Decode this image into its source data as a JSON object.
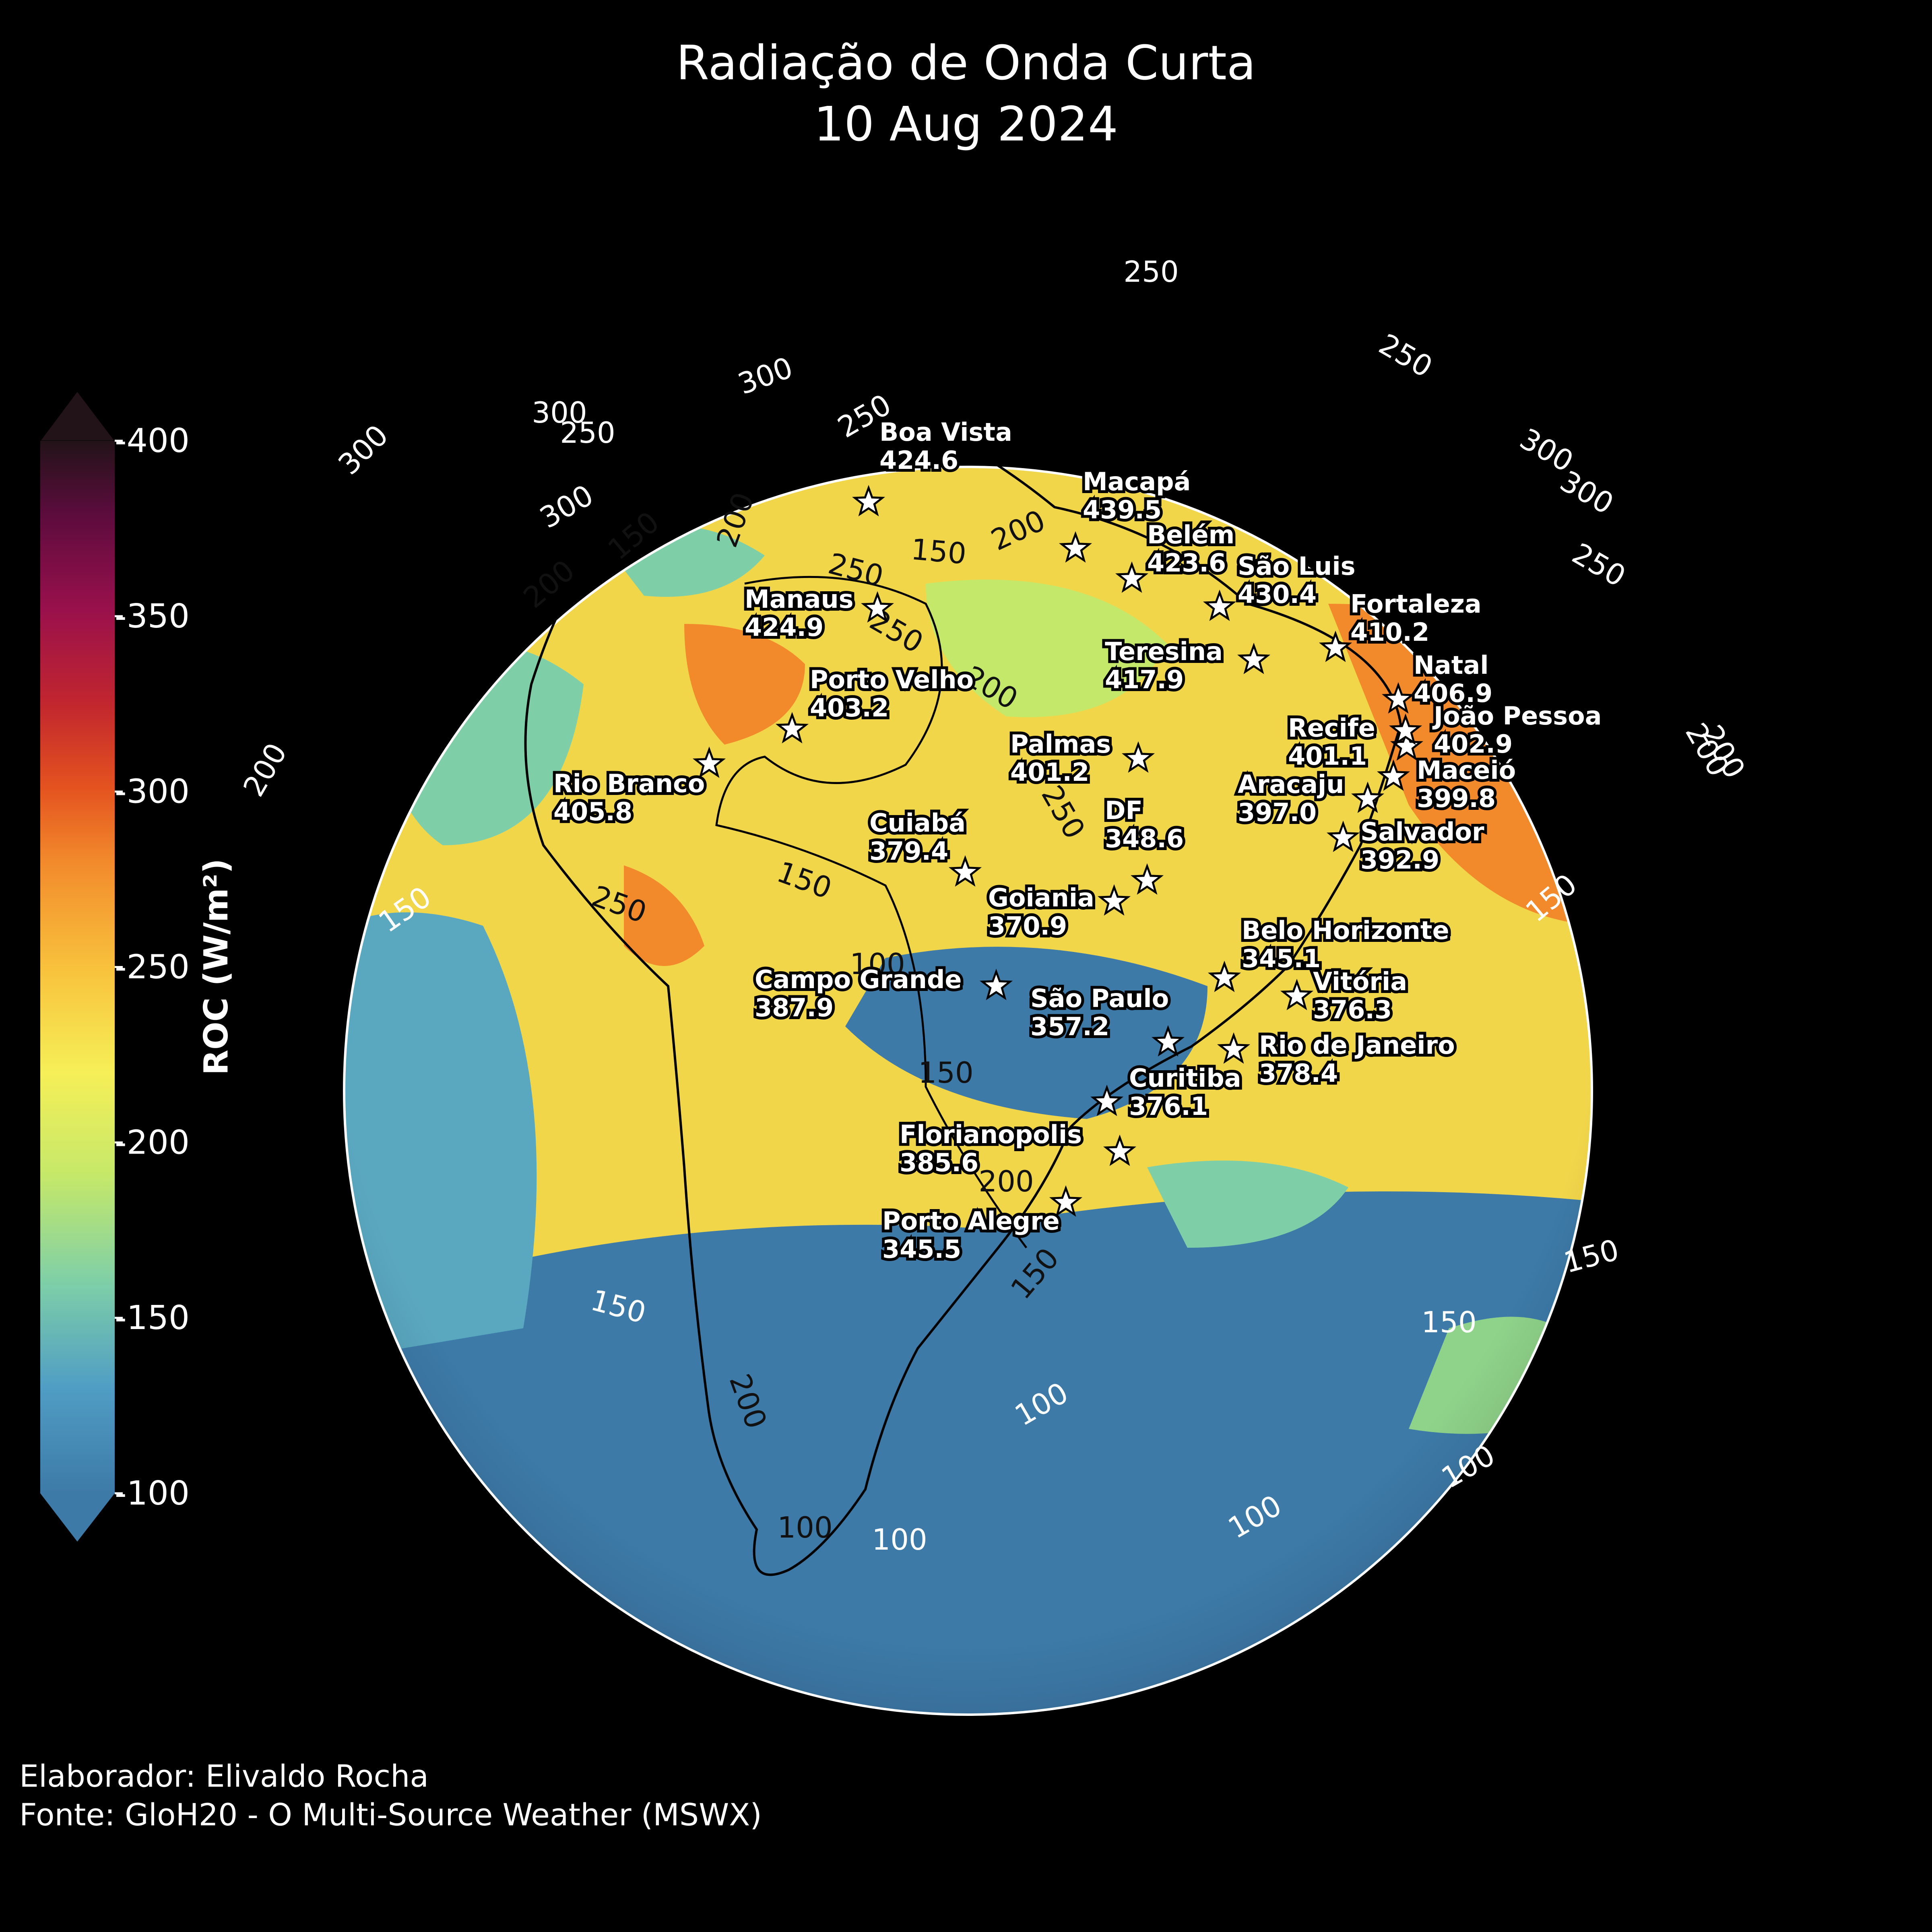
{
  "title": {
    "line1": "Radiação de Onda Curta",
    "line2": "10 Aug 2024"
  },
  "footer": {
    "author": "Elaborador: Elivaldo Rocha",
    "source": "Fonte: GloH20 - O Multi-Source Weather (MSWX)"
  },
  "colorbar": {
    "label": "ROC (W/m²)",
    "ticks": [
      "-100",
      "-150",
      "-200",
      "-250",
      "-300",
      "-350",
      "-400"
    ],
    "range": [
      100,
      400
    ],
    "extend": "both",
    "colors": [
      "#3d7aa8",
      "#4f9dc4",
      "#7ecfa8",
      "#c4e86a",
      "#f6ef57",
      "#f8c13c",
      "#f28a2c",
      "#e4531f",
      "#c2262e",
      "#99104c",
      "#5c0c3d",
      "#221318"
    ]
  },
  "cities": [
    {
      "name": "Boa Vista",
      "value": "424.6"
    },
    {
      "name": "Macapá",
      "value": "439.5"
    },
    {
      "name": "Belém",
      "value": "423.6"
    },
    {
      "name": "São Luis",
      "value": "430.4"
    },
    {
      "name": "Fortaleza",
      "value": "410.2"
    },
    {
      "name": "Manaus",
      "value": "424.9"
    },
    {
      "name": "Teresina",
      "value": "417.9"
    },
    {
      "name": "Natal",
      "value": "406.9"
    },
    {
      "name": "João Pessoa",
      "value": "402.9"
    },
    {
      "name": "Recife",
      "value": "401.1"
    },
    {
      "name": "Maceió",
      "value": "399.8"
    },
    {
      "name": "Aracaju",
      "value": "397.0"
    },
    {
      "name": "Salvador",
      "value": "392.9"
    },
    {
      "name": "Porto Velho",
      "value": "403.2"
    },
    {
      "name": "Palmas",
      "value": "401.2"
    },
    {
      "name": "Rio Branco",
      "value": "405.8"
    },
    {
      "name": "DF",
      "value": "348.6"
    },
    {
      "name": "Cuiabá",
      "value": "379.4"
    },
    {
      "name": "Goiania",
      "value": "370.9"
    },
    {
      "name": "Belo Horizonte",
      "value": "345.1"
    },
    {
      "name": "Vitória",
      "value": "376.3"
    },
    {
      "name": "Campo Grande",
      "value": "387.9"
    },
    {
      "name": "São Paulo",
      "value": "357.2"
    },
    {
      "name": "Rio de Janeiro",
      "value": "378.4"
    },
    {
      "name": "Curitiba",
      "value": "376.1"
    },
    {
      "name": "Florianopolis",
      "value": "385.6"
    },
    {
      "name": "Porto Alegre",
      "value": "345.5"
    }
  ],
  "contour_labels": [
    {
      "text": "150",
      "color": "black"
    },
    {
      "text": "200",
      "color": "black"
    },
    {
      "text": "250",
      "color": "black"
    },
    {
      "text": "250",
      "color": "black"
    },
    {
      "text": "200",
      "color": "black"
    },
    {
      "text": "150",
      "color": "black"
    },
    {
      "text": "200",
      "color": "black"
    },
    {
      "text": "250",
      "color": "black"
    },
    {
      "text": "150",
      "color": "black"
    },
    {
      "text": "250",
      "color": "black"
    },
    {
      "text": "100",
      "color": "black"
    },
    {
      "text": "150",
      "color": "black"
    },
    {
      "text": "200",
      "color": "black"
    },
    {
      "text": "150",
      "color": "black"
    },
    {
      "text": "100",
      "color": "black"
    },
    {
      "text": "200",
      "color": "black"
    },
    {
      "text": "200",
      "color": "black"
    },
    {
      "text": "300",
      "color": "white"
    },
    {
      "text": "300",
      "color": "white"
    },
    {
      "text": "250",
      "color": "white"
    },
    {
      "text": "300",
      "color": "white"
    },
    {
      "text": "250",
      "color": "white"
    },
    {
      "text": "300",
      "color": "white"
    },
    {
      "text": "250",
      "color": "white"
    },
    {
      "text": "200",
      "color": "white"
    },
    {
      "text": "200",
      "color": "white"
    },
    {
      "text": "150",
      "color": "white"
    },
    {
      "text": "150",
      "color": "white"
    },
    {
      "text": "150",
      "color": "white"
    },
    {
      "text": "100",
      "color": "white"
    },
    {
      "text": "100",
      "color": "white"
    },
    {
      "text": "100",
      "color": "white"
    },
    {
      "text": "100",
      "color": "white"
    },
    {
      "text": "150",
      "color": "white"
    },
    {
      "text": "150",
      "color": "white"
    },
    {
      "text": "250",
      "color": "white"
    },
    {
      "text": "300",
      "color": "white"
    },
    {
      "text": "250",
      "color": "white"
    },
    {
      "text": "300",
      "color": "white"
    },
    {
      "text": "200",
      "color": "white"
    }
  ]
}
